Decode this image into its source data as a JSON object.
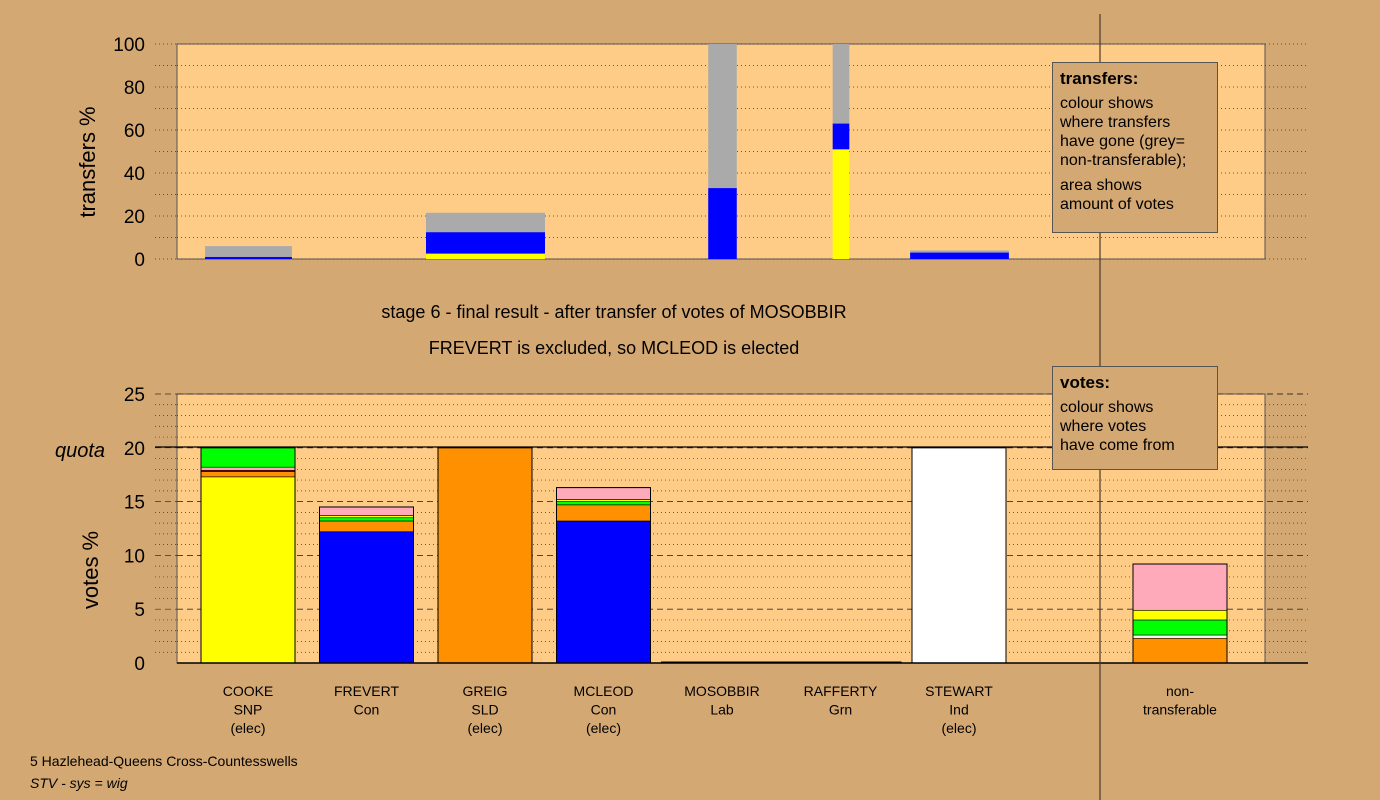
{
  "colors": {
    "background": "#d4a873",
    "plot_background": "#ffcc88",
    "snp": "#ffff00",
    "con": "#0000ff",
    "sld": "#ff9100",
    "lab": "#ff0000",
    "grn": "#00ff00",
    "ind": "#ffffff",
    "other": "#ffaabb",
    "nontransferable": "#aaaaaa"
  },
  "stage_title": "stage 6 - final result - after transfer of votes of MOSOBBIR",
  "stage_subtitle": "FREVERT is excluded, so MCLEOD is elected",
  "legend_transfers": {
    "title": "transfers:",
    "line1": "colour shows",
    "line2": "where transfers",
    "line3": "have gone (grey=",
    "line4": "non-transferable);",
    "line5": "area shows",
    "line6": "amount of votes"
  },
  "legend_votes": {
    "title": "votes:",
    "line1": "colour shows",
    "line2": "where votes",
    "line3": "have come from"
  },
  "footer": {
    "ward": "5 Hazlehead-Queens Cross-Countesswells",
    "system": "STV - sys = wig"
  },
  "chart_data": [
    {
      "type": "bar",
      "name": "transfers",
      "ylabel": "transfers %",
      "ylim": [
        0,
        100
      ],
      "yticks": [
        0,
        20,
        40,
        60,
        80,
        100
      ],
      "categories": [
        "COOKE",
        "FREVERT",
        "GREIG",
        "MCLEOD",
        "MOSOBBIR",
        "RAFFERTY",
        "STEWART"
      ],
      "bars": [
        {
          "category": "COOKE",
          "width": 0.73,
          "segments": [
            {
              "color": "con",
              "value": 1
            },
            {
              "color": "nontransferable",
              "value": 5
            }
          ]
        },
        {
          "category": "FREVERT",
          "width": 0,
          "segments": []
        },
        {
          "category": "GREIG",
          "width": 1.0,
          "segments": [
            {
              "color": "snp",
              "value": 2.5
            },
            {
              "color": "con",
              "value": 10
            },
            {
              "color": "nontransferable",
              "value": 9
            }
          ]
        },
        {
          "category": "MCLEOD",
          "width": 0,
          "segments": []
        },
        {
          "category": "MOSOBBIR",
          "width": 0.24,
          "segments": [
            {
              "color": "con",
              "value": 33
            },
            {
              "color": "nontransferable",
              "value": 67
            }
          ]
        },
        {
          "category": "RAFFERTY",
          "width": 0.14,
          "segments": [
            {
              "color": "snp",
              "value": 51
            },
            {
              "color": "con",
              "value": 12
            },
            {
              "color": "nontransferable",
              "value": 37
            }
          ]
        },
        {
          "category": "STEWART",
          "width": 0.83,
          "segments": [
            {
              "color": "con",
              "value": 3
            },
            {
              "color": "nontransferable",
              "value": 1
            }
          ]
        }
      ]
    },
    {
      "type": "bar",
      "name": "votes",
      "ylabel": "votes %",
      "ylim": [
        0,
        25
      ],
      "yticks": [
        0,
        5,
        10,
        15,
        20,
        25
      ],
      "quota_label": "quota",
      "quota": 20,
      "candidates": [
        {
          "name": "COOKE",
          "party": "SNP",
          "status": "(elec)",
          "segments": [
            {
              "color": "snp",
              "value": 17.3
            },
            {
              "color": "sld",
              "value": 0.5
            },
            {
              "color": "lab",
              "value": 0.1
            },
            {
              "color": "other",
              "value": 0.3
            },
            {
              "color": "grn",
              "value": 1.8
            }
          ]
        },
        {
          "name": "FREVERT",
          "party": "Con",
          "status": "",
          "segments": [
            {
              "color": "con",
              "value": 12.2
            },
            {
              "color": "sld",
              "value": 1.0
            },
            {
              "color": "grn",
              "value": 0.3
            },
            {
              "color": "snp",
              "value": 0.2
            },
            {
              "color": "other",
              "value": 0.8
            }
          ]
        },
        {
          "name": "GREIG",
          "party": "SLD",
          "status": "(elec)",
          "segments": [
            {
              "color": "sld",
              "value": 20
            }
          ]
        },
        {
          "name": "MCLEOD",
          "party": "Con",
          "status": "(elec)",
          "segments": [
            {
              "color": "con",
              "value": 13.2
            },
            {
              "color": "sld",
              "value": 1.5
            },
            {
              "color": "grn",
              "value": 0.3
            },
            {
              "color": "snp",
              "value": 0.2
            },
            {
              "color": "other",
              "value": 1.1
            }
          ]
        },
        {
          "name": "MOSOBBIR",
          "party": "Lab",
          "status": "",
          "segments": []
        },
        {
          "name": "RAFFERTY",
          "party": "Grn",
          "status": "",
          "segments": []
        },
        {
          "name": "STEWART",
          "party": "Ind",
          "status": "(elec)",
          "segments": [
            {
              "color": "ind",
              "value": 20
            }
          ]
        },
        {
          "name": "non-",
          "party": "transferable",
          "status": "",
          "segments": [
            {
              "color": "sld",
              "value": 2.3
            },
            {
              "color": "ind",
              "value": 0.3
            },
            {
              "color": "grn",
              "value": 1.4
            },
            {
              "color": "snp",
              "value": 0.9
            },
            {
              "color": "other",
              "value": 4.3
            }
          ]
        }
      ]
    }
  ]
}
